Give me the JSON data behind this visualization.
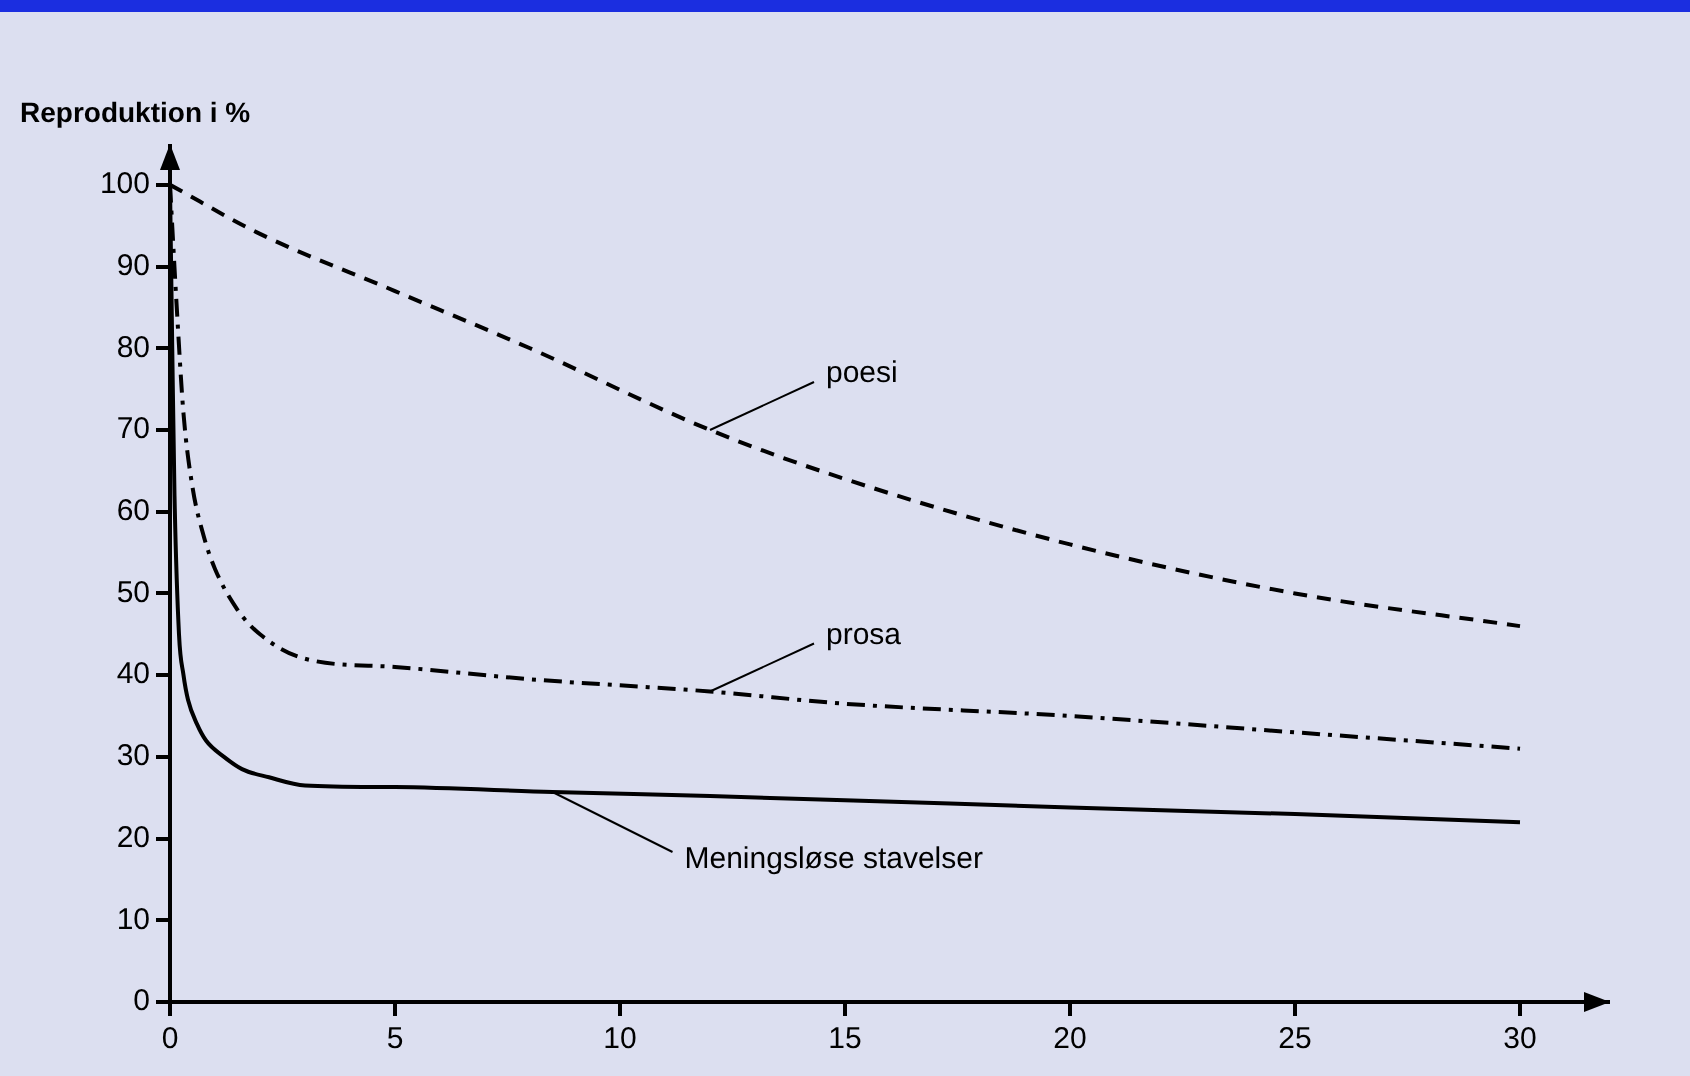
{
  "chart_data": {
    "type": "line",
    "ylabel": "Reproduktion i %",
    "xlim": [
      0,
      32
    ],
    "ylim": [
      0,
      105
    ],
    "xticks": [
      0,
      5,
      10,
      15,
      20,
      25,
      30
    ],
    "yticks": [
      0,
      10,
      20,
      30,
      40,
      50,
      60,
      70,
      80,
      90,
      100
    ],
    "grid": false,
    "legend": false,
    "marker": "none",
    "series": [
      {
        "name": "poesi",
        "color": "#000000",
        "line_style": "dashed",
        "x": [
          0,
          2,
          5,
          8,
          12,
          15,
          20,
          25,
          30
        ],
        "values": [
          100,
          94,
          87,
          80,
          70,
          64,
          56,
          50,
          46
        ]
      },
      {
        "name": "prosa",
        "color": "#000000",
        "line_style": "dashdot",
        "x": [
          0,
          0.15,
          0.3,
          0.5,
          0.75,
          1,
          1.5,
          2,
          3,
          5,
          8,
          12,
          15,
          20,
          25,
          30
        ],
        "values": [
          100,
          85,
          72,
          63,
          57,
          53,
          48,
          45,
          42,
          41,
          39.5,
          38,
          36.5,
          35,
          33,
          31
        ]
      },
      {
        "name": "Meningsløse stavelser",
        "color": "#000000",
        "line_style": "solid",
        "x": [
          0,
          0.05,
          0.1,
          0.2,
          0.3,
          0.4,
          0.6,
          0.8,
          1.2,
          1.6,
          2.2,
          3,
          5,
          8.5,
          12,
          15,
          20,
          25,
          30
        ],
        "values": [
          100,
          80,
          62,
          45,
          40,
          37,
          34,
          32,
          30,
          28.5,
          27.5,
          26.5,
          26.3,
          25.7,
          25.2,
          24.7,
          23.8,
          23,
          22
        ]
      }
    ]
  }
}
